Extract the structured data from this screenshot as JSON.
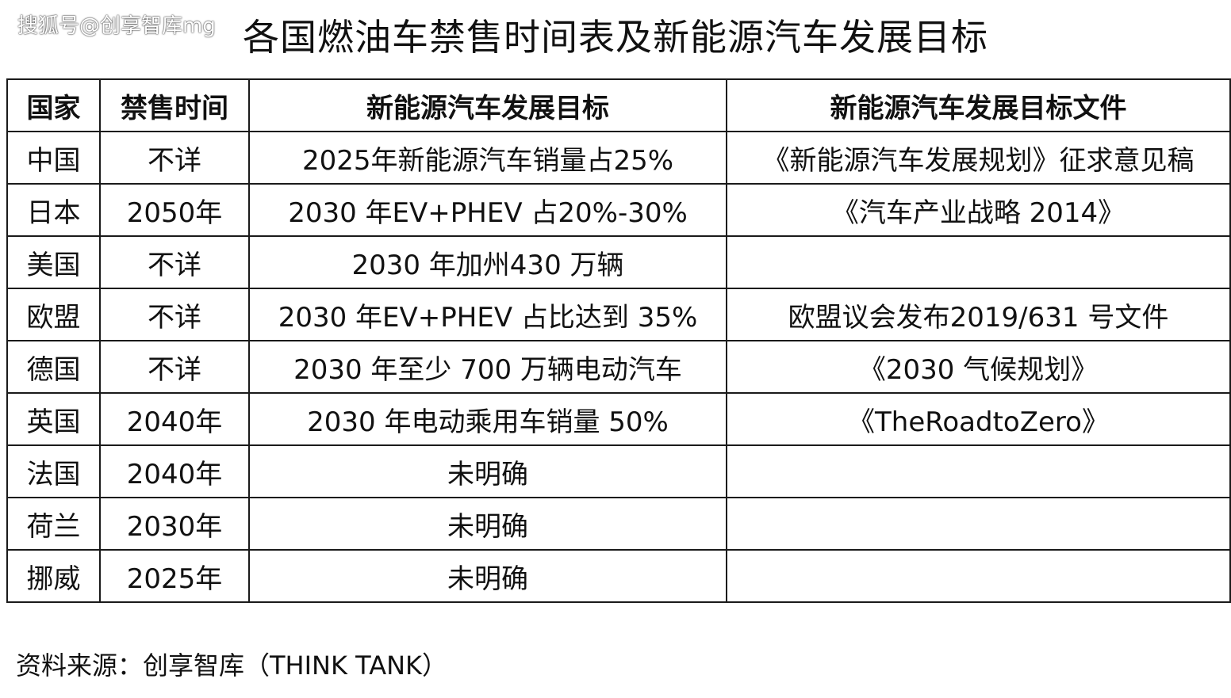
{
  "watermark": "搜狐号@创享智库mg",
  "title": "各国燃油车禁售时间表及新能源汽车发展目标",
  "table": {
    "headers": [
      "国家",
      "禁售时间",
      "新能源汽车发展目标",
      "新能源汽车发展目标文件"
    ],
    "rows": [
      [
        "中国",
        "不详",
        "2025年新能源汽车销量占25%",
        "《新能源汽车发展规划》征求意见稿"
      ],
      [
        "日本",
        "2050年",
        "2030 年EV+PHEV 占20%-30%",
        "《汽车产业战略 2014》"
      ],
      [
        "美国",
        "不详",
        "2030 年加州430 万辆",
        ""
      ],
      [
        "欧盟",
        "不详",
        "2030 年EV+PHEV 占比达到 35%",
        "欧盟议会发布2019/631 号文件"
      ],
      [
        "德国",
        "不详",
        "2030 年至少 700  万辆电动汽车",
        "《2030 气候规划》"
      ],
      [
        "英国",
        "2040年",
        "2030 年电动乘用车销量 50%",
        "《TheRoadtoZero》"
      ],
      [
        "法国",
        "2040年",
        "未明确",
        ""
      ],
      [
        "荷兰",
        "2030年",
        "未明确",
        ""
      ],
      [
        "挪威",
        "2025年",
        "未明确",
        ""
      ]
    ]
  },
  "source": "资料来源：创享智库（THINK  TANK）"
}
